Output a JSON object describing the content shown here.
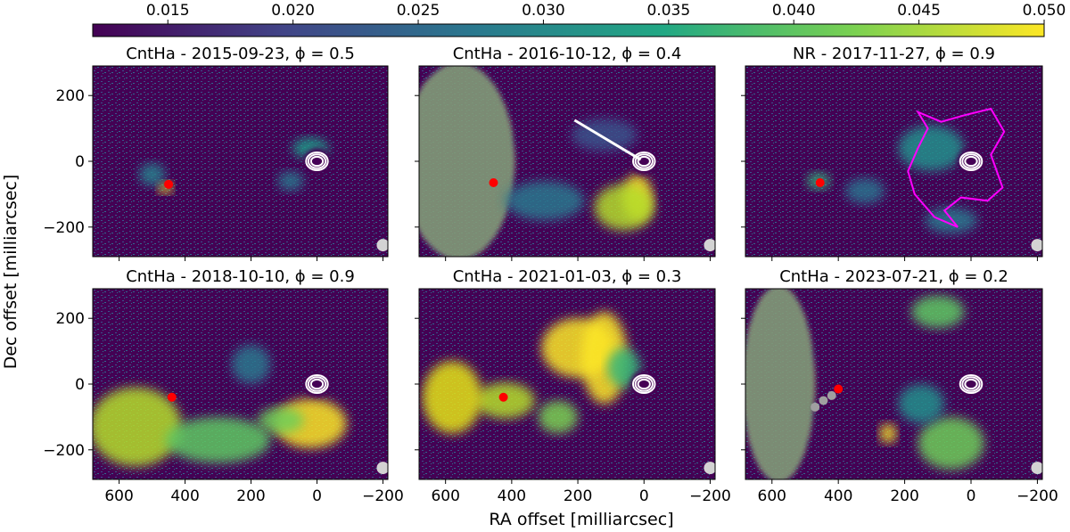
{
  "figure": {
    "xlabel": "RA offset [milliarcsec]",
    "ylabel": "Dec offset [milliarcsec]"
  },
  "colorbar": {
    "ticks": [
      "0.015",
      "0.020",
      "0.025",
      "0.030",
      "0.035",
      "0.040",
      "0.045",
      "0.050"
    ],
    "tick_values": [
      0.015,
      0.02,
      0.025,
      0.03,
      0.035,
      0.04,
      0.045,
      0.05
    ],
    "range": [
      0.012,
      0.05
    ],
    "colormap": "viridis",
    "colors": [
      "#440154",
      "#414487",
      "#2a788e",
      "#22a884",
      "#7ad151",
      "#fde725"
    ]
  },
  "chart_data": {
    "type": "heatmap",
    "xlim": [
      680,
      -215
    ],
    "ylim": [
      -290,
      290
    ],
    "xticks": [
      600,
      400,
      200,
      0,
      -200
    ],
    "xtick_labels": [
      "600",
      "400",
      "200",
      "0",
      "−200"
    ],
    "yticks": [
      200,
      0,
      -200
    ],
    "ytick_labels": [
      "200",
      "0",
      "−200"
    ],
    "panels": [
      {
        "title": "CntHa - 2015-09-23, ϕ = 0.5",
        "red_dot": [
          450,
          -70
        ],
        "features": {
          "bright_knot": [
            470,
            -80
          ]
        }
      },
      {
        "title": "CntHa - 2016-10-12, ϕ = 0.4",
        "red_dot": [
          455,
          -65
        ],
        "line": {
          "from": [
            210,
            125
          ],
          "to": [
            10,
            5
          ],
          "color": "#ffffff"
        }
      },
      {
        "title": "NR - 2017-11-27, ϕ = 0.9",
        "red_dot": [
          455,
          -65
        ],
        "contour_color": "#ff00ff"
      },
      {
        "title": "CntHa - 2018-10-10, ϕ = 0.9",
        "red_dot": [
          440,
          -40
        ]
      },
      {
        "title": "CntHa - 2021-01-03, ϕ = 0.3",
        "red_dot": [
          425,
          -40
        ]
      },
      {
        "title": "CntHa - 2023-07-21, ϕ = 0.2",
        "red_dot": [
          400,
          -15
        ],
        "grey_dots": [
          [
            420,
            -35
          ],
          [
            445,
            -50
          ],
          [
            470,
            -70
          ]
        ]
      }
    ],
    "colors": {
      "marker": "#ff0000",
      "contours": "#ffffff",
      "beam": "#d3d3d3",
      "grey_dots": "#a0a0a0"
    }
  }
}
